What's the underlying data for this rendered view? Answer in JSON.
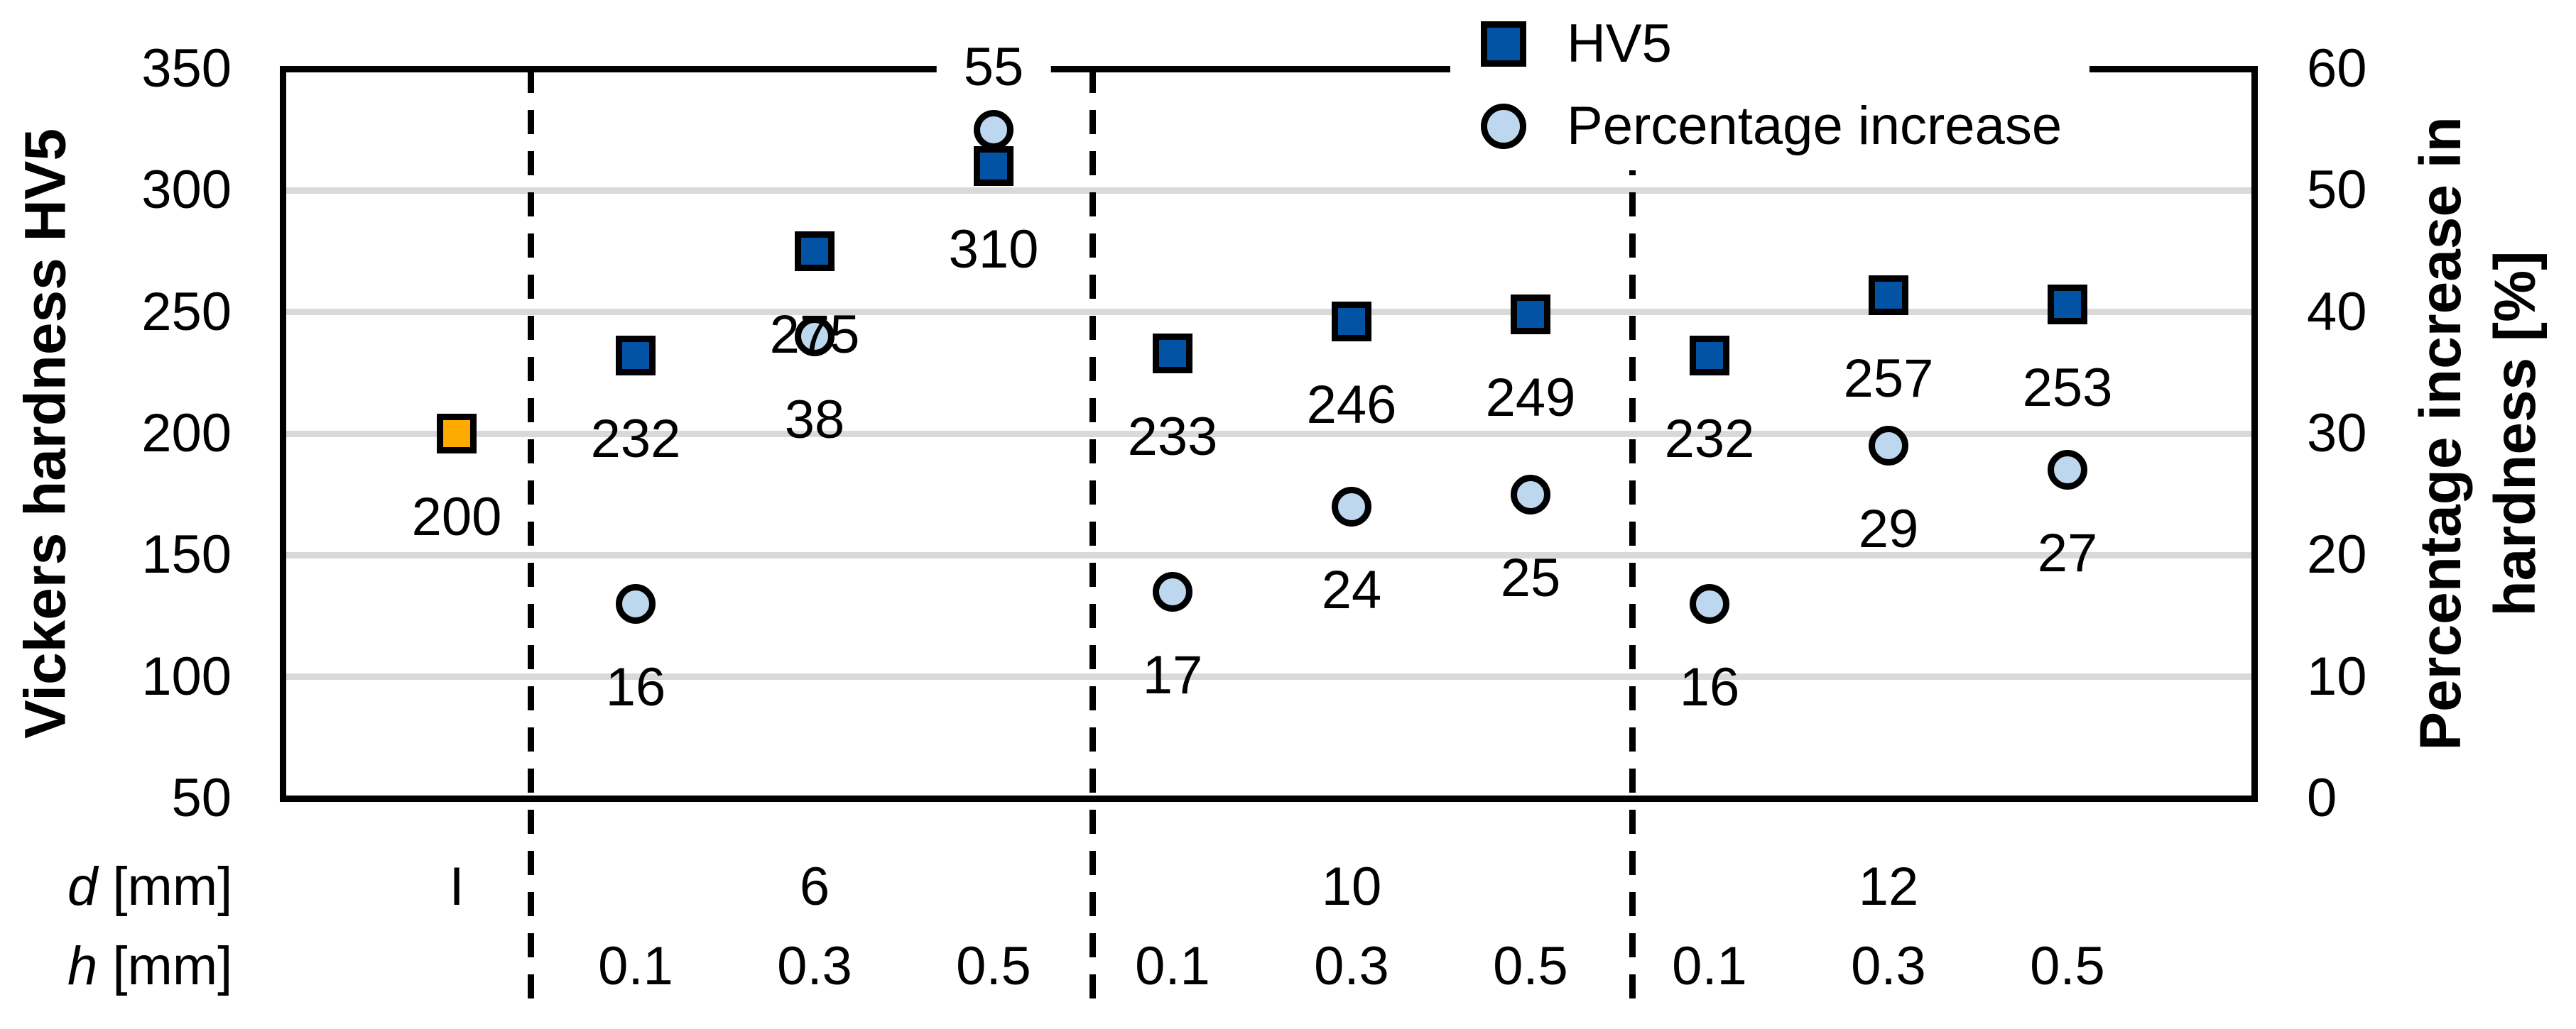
{
  "chart_data": {
    "type": "scatter",
    "title": "",
    "left_axis": {
      "title": "Vickers hardness HV5",
      "min": 50,
      "max": 350,
      "ticks": [
        350,
        300,
        250,
        200,
        150,
        100,
        50
      ]
    },
    "right_axis": {
      "title_lines": [
        "Percentage increase in",
        "hardness [%]"
      ],
      "min": 0,
      "max": 60,
      "ticks": [
        60,
        50,
        40,
        30,
        20,
        10,
        0
      ]
    },
    "x_axis": {
      "row1": {
        "symbol": "d",
        "unit": "[mm]"
      },
      "row2": {
        "symbol": "h",
        "unit": "[mm]"
      }
    },
    "legend": [
      {
        "label": "HV5",
        "marker": "square"
      },
      {
        "label": "Percentage increase",
        "marker": "circle"
      }
    ],
    "colors": {
      "hv5": "#0353A4",
      "initial": "#FFAA00",
      "percentage": "#BDD7EE",
      "gridline": "#D9D9D9",
      "axis": "#000000"
    },
    "groups": [
      {
        "d": "I",
        "points": [
          {
            "h": "",
            "hv5": 200,
            "hv5_marker": "initial"
          }
        ]
      },
      {
        "d": "6",
        "points": [
          {
            "h": "0.1",
            "hv5": 232,
            "pct": 16
          },
          {
            "h": "0.3",
            "hv5": 275,
            "pct": 38
          },
          {
            "h": "0.5",
            "hv5": 310,
            "pct": 55,
            "pct_label_position": "above"
          }
        ]
      },
      {
        "d": "10",
        "points": [
          {
            "h": "0.1",
            "hv5": 233,
            "pct": 17
          },
          {
            "h": "0.3",
            "hv5": 246,
            "pct": 24
          },
          {
            "h": "0.5",
            "hv5": 249,
            "pct": 25
          }
        ]
      },
      {
        "d": "12",
        "points": [
          {
            "h": "0.1",
            "hv5": 232,
            "pct": 16
          },
          {
            "h": "0.3",
            "hv5": 257,
            "pct": 29
          },
          {
            "h": "0.5",
            "hv5": 253,
            "pct": 27
          }
        ]
      }
    ]
  }
}
